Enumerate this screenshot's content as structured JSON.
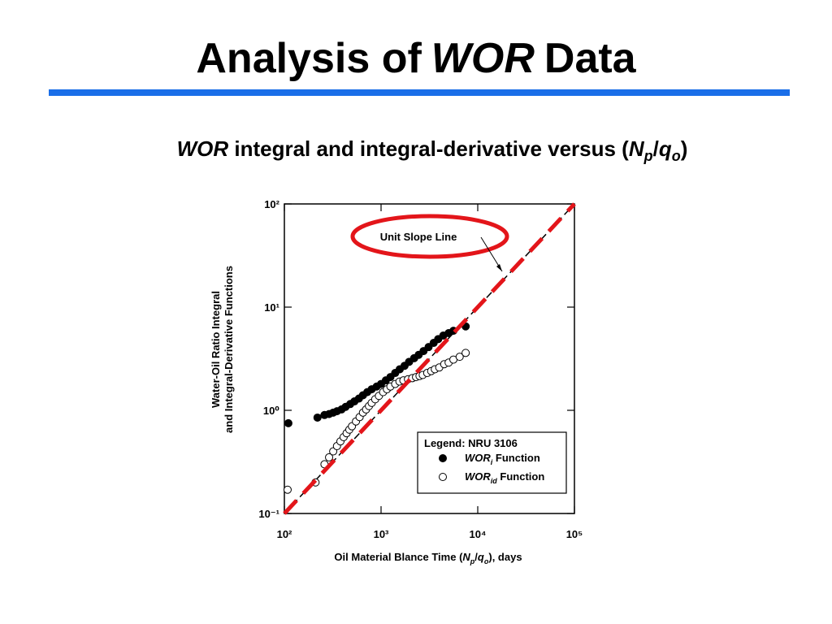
{
  "slide": {
    "title": [
      "Analysis of",
      "WOR",
      "Data"
    ],
    "subtitle": [
      "WOR",
      " integral and integral-derivative versus (",
      "N",
      "p",
      "/",
      "q",
      "o",
      ")"
    ]
  },
  "chart_data": {
    "type": "scatter",
    "x_label": [
      "Oil Material Blance Time (",
      "N",
      "p",
      "/",
      "q",
      "o",
      "), days"
    ],
    "y_label": [
      "Water-Oil Ratio Integral",
      "and Integral-Derivative Functions"
    ],
    "log_x": true,
    "log_y": true,
    "xlim": [
      100,
      100000
    ],
    "ylim": [
      0.1,
      100
    ],
    "xticks": [
      {
        "value": 100,
        "label": "10²"
      },
      {
        "value": 1000,
        "label": "10³"
      },
      {
        "value": 10000,
        "label": "10⁴"
      },
      {
        "value": 100000,
        "label": "10⁵"
      }
    ],
    "yticks": [
      {
        "value": 0.1,
        "label": "10⁻¹"
      },
      {
        "value": 1,
        "label": "10⁰"
      },
      {
        "value": 10,
        "label": "10¹"
      },
      {
        "value": 100,
        "label": "10²"
      }
    ],
    "legend_title": "Legend: NRU 3106",
    "legend_position": "lower right",
    "series": [
      {
        "name": [
          "WOR",
          "i",
          " Function"
        ],
        "color": "#000000",
        "filled": true,
        "x": [
          110,
          220,
          260,
          290,
          320,
          350,
          390,
          430,
          480,
          530,
          590,
          650,
          720,
          800,
          900,
          1000,
          1120,
          1250,
          1400,
          1560,
          1750,
          1950,
          2200,
          2450,
          2750,
          3100,
          3500,
          3900,
          4400,
          5000,
          5600,
          7500
        ],
        "values": [
          0.75,
          0.85,
          0.9,
          0.92,
          0.95,
          0.98,
          1.02,
          1.08,
          1.15,
          1.22,
          1.3,
          1.4,
          1.5,
          1.6,
          1.7,
          1.8,
          1.95,
          2.1,
          2.3,
          2.5,
          2.7,
          2.95,
          3.2,
          3.45,
          3.75,
          4.1,
          4.5,
          4.9,
          5.3,
          5.6,
          5.9,
          6.5
        ]
      },
      {
        "name": [
          "WOR",
          "id",
          " Function"
        ],
        "color": "#000000",
        "filled": false,
        "x": [
          108,
          210,
          260,
          290,
          320,
          350,
          380,
          410,
          440,
          470,
          500,
          550,
          600,
          650,
          700,
          750,
          800,
          870,
          950,
          1050,
          1150,
          1250,
          1400,
          1550,
          1700,
          1900,
          2100,
          2300,
          2500,
          2700,
          3000,
          3300,
          3600,
          4000,
          4500,
          5000,
          5600,
          6500,
          7500
        ],
        "values": [
          0.17,
          0.2,
          0.3,
          0.35,
          0.4,
          0.45,
          0.5,
          0.55,
          0.6,
          0.65,
          0.7,
          0.78,
          0.86,
          0.95,
          1.02,
          1.1,
          1.18,
          1.28,
          1.38,
          1.5,
          1.6,
          1.7,
          1.8,
          1.9,
          1.95,
          2.0,
          2.05,
          2.1,
          2.15,
          2.2,
          2.3,
          2.4,
          2.5,
          2.6,
          2.8,
          2.9,
          3.1,
          3.3,
          3.6
        ]
      }
    ],
    "unit_slope_line": {
      "color": "#000000",
      "x": [
        100,
        100000
      ],
      "values": [
        0.1,
        100
      ]
    },
    "highlight_line": {
      "color": "#e3151a",
      "x": [
        100,
        100000
      ],
      "values": [
        0.1,
        100
      ]
    },
    "annotation": "Unit Slope Line"
  }
}
